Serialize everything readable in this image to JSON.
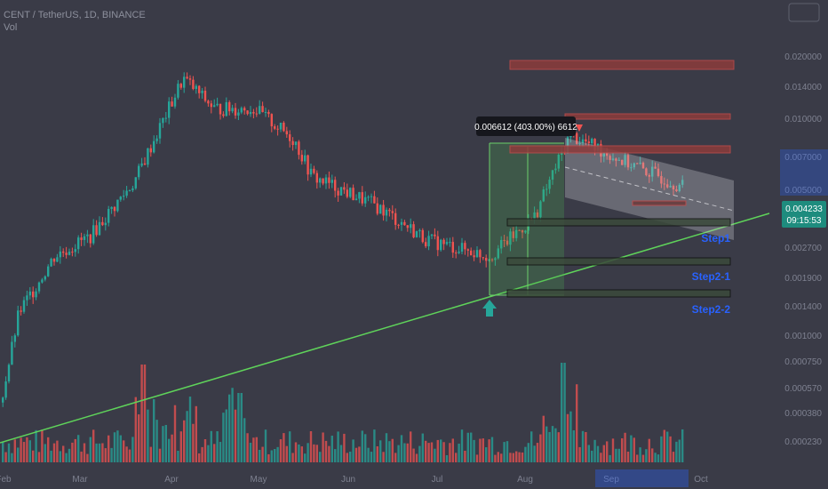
{
  "header": {
    "symbol_line": "CENT / TetherUS, 1D, BINANCE",
    "volume_label": "Vol"
  },
  "colors": {
    "background": "#3a3b47",
    "up": "#26a69a",
    "down": "#ef5350",
    "trendline": "#5fd35a",
    "step_label": "#2962ff",
    "price_badge": "#1e8c7e"
  },
  "price_axis": {
    "ticks": [
      "0.020000",
      "0.014000",
      "0.010000",
      "0.007000",
      "0.005000",
      "0.003700",
      "0.002700",
      "0.001900",
      "0.001400",
      "0.001000",
      "0.000750",
      "0.000570",
      "0.000380",
      "0.000230"
    ],
    "last_price": "0.004233",
    "countdown": "09:15:53"
  },
  "time_axis": {
    "labels": [
      "Feb",
      "Mar",
      "Apr",
      "May",
      "Jun",
      "Jul",
      "Aug",
      "Sep",
      "Oct"
    ]
  },
  "annotations": {
    "measure": "0.006612 (403.00%) 6612",
    "steps": [
      "Step1",
      "Step2-1",
      "Step2-2"
    ]
  },
  "chart_data": {
    "type": "candlestick",
    "title": "CENT / TetherUS, 1D, BINANCE",
    "y_scale": "log",
    "ylim": [
      0.0002,
      0.03
    ],
    "x_range": [
      "Feb",
      "Oct"
    ],
    "price_path": [
      {
        "date": "Feb",
        "price": 0.0003
      },
      {
        "date": "Mar",
        "price": 0.0028
      },
      {
        "date": "mid Mar",
        "price": 0.0033
      },
      {
        "date": "Apr",
        "price": 0.016
      },
      {
        "date": "mid Apr",
        "price": 0.012
      },
      {
        "date": "May",
        "price": 0.011
      },
      {
        "date": "mid May",
        "price": 0.0075
      },
      {
        "date": "Jun",
        "price": 0.0045
      },
      {
        "date": "mid Jun",
        "price": 0.0033
      },
      {
        "date": "Jul",
        "price": 0.0022
      },
      {
        "date": "mid Jul",
        "price": 0.0019
      },
      {
        "date": "Aug",
        "price": 0.0029
      },
      {
        "date": "mid Aug",
        "price": 0.0078
      },
      {
        "date": "Sep",
        "price": 0.0058
      },
      {
        "date": "mid Sep",
        "price": 0.0042
      }
    ],
    "volume": "up/down colored bars, spikes near Apr, Jun and mid-Aug",
    "horizontal_zones": [
      {
        "label": "",
        "price": 0.021,
        "color": "red"
      },
      {
        "label": "",
        "price": 0.0102,
        "color": "red"
      },
      {
        "label": "",
        "price": 0.0075,
        "color": "red"
      },
      {
        "label": "Step1",
        "price": 0.0038,
        "color": "green"
      },
      {
        "label": "Step2-1",
        "price": 0.0022,
        "color": "green"
      },
      {
        "label": "Step2-2",
        "price": 0.0015,
        "color": "green"
      }
    ],
    "measured_move": "0.006612 (403.00%) 6612",
    "legend": "top-left",
    "grid": false
  }
}
